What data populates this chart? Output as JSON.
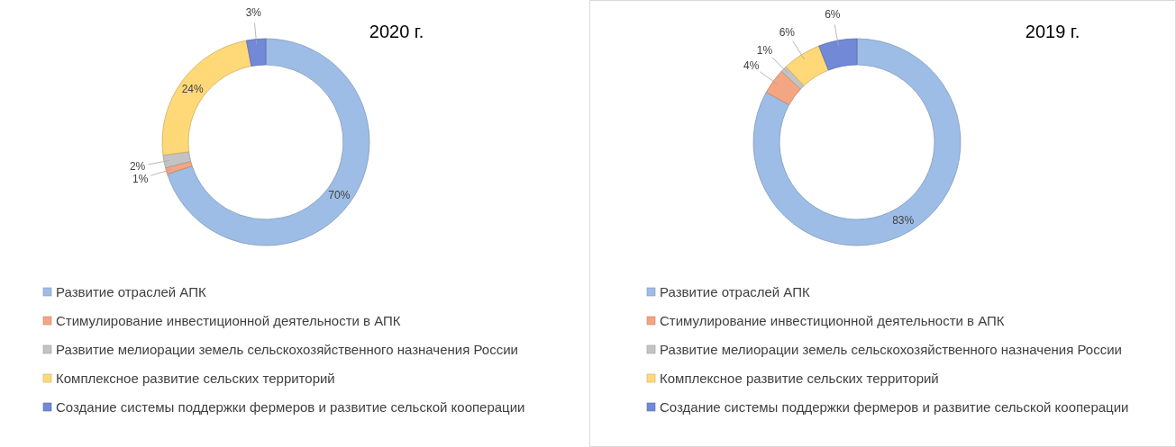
{
  "chart_data": [
    {
      "type": "donut",
      "title": "2020 г.",
      "categories": [
        "Развитие отраслей АПК",
        "Стимулирование инвестиционной деятельности в АПК",
        "Развитие мелиорации земель сельскохозяйственного назначения России",
        "Комплексное развитие сельских территорий",
        "Создание системы поддержки фермеров и развитие сельской кооперации"
      ],
      "values": [
        70,
        1,
        2,
        24,
        3
      ],
      "value_labels": [
        "70%",
        "1%",
        "2%",
        "24%",
        "3%"
      ],
      "colors": [
        "#9dbde6",
        "#f4a582",
        "#c3c3c3",
        "#ffd978",
        "#7189d6"
      ],
      "legend": "bottom"
    },
    {
      "type": "donut",
      "title": "2019 г.",
      "categories": [
        "Развитие отраслей АПК",
        "Стимулирование инвестиционной деятельности в АПК",
        "Развитие мелиорации земель сельскохозяйственного назначения России",
        "Комплексное развитие сельских территорий",
        "Создание системы поддержки фермеров и развитие сельской кооперации"
      ],
      "values": [
        83,
        4,
        1,
        6,
        6
      ],
      "value_labels": [
        "83%",
        "4%",
        "1%",
        "6%",
        "6%"
      ],
      "colors": [
        "#9dbde6",
        "#f4a582",
        "#c3c3c3",
        "#ffd978",
        "#7189d6"
      ],
      "legend": "bottom"
    }
  ]
}
